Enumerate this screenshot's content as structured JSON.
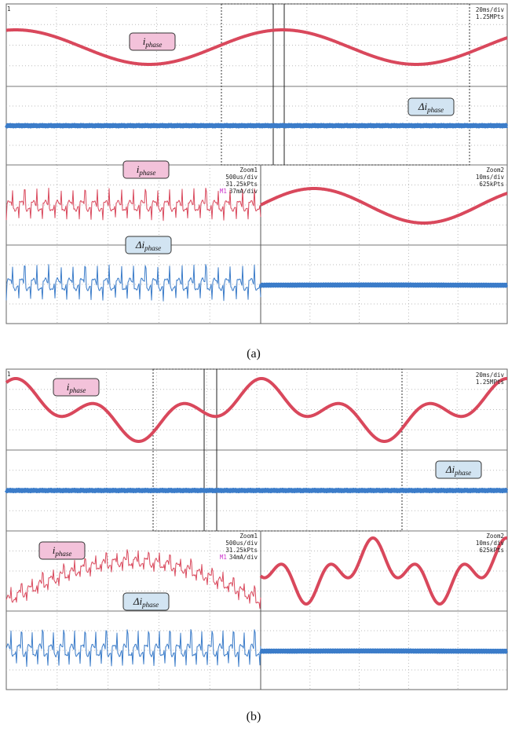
{
  "panels": [
    {
      "caption": "(a)",
      "channel": "1",
      "timebase": "20ms/div",
      "points": "1.25MPts",
      "current_label": {
        "symbol": "i",
        "subscript": "phase"
      },
      "ripple_label": {
        "symbol": "Δi",
        "subscript": "phase"
      },
      "zoom1": {
        "name": "Zoom1",
        "timebase": "500us/div",
        "points": "31.25kPts",
        "marker": "M1",
        "scale": "37mA/div"
      },
      "zoom2": {
        "name": "Zoom2",
        "timebase": "10ms/div",
        "points": "625kPts"
      }
    },
    {
      "caption": "(b)",
      "channel": "1",
      "timebase": "20ms/div",
      "points": "1.25MPts",
      "current_label": {
        "symbol": "i",
        "subscript": "phase"
      },
      "ripple_label": {
        "symbol": "Δi",
        "subscript": "phase"
      },
      "zoom1": {
        "name": "Zoom1",
        "timebase": "500us/div",
        "points": "31.25kPts",
        "marker": "M1",
        "scale": "34mA/div"
      },
      "zoom2": {
        "name": "Zoom2",
        "timebase": "10ms/div",
        "points": "625kPts"
      }
    }
  ]
}
